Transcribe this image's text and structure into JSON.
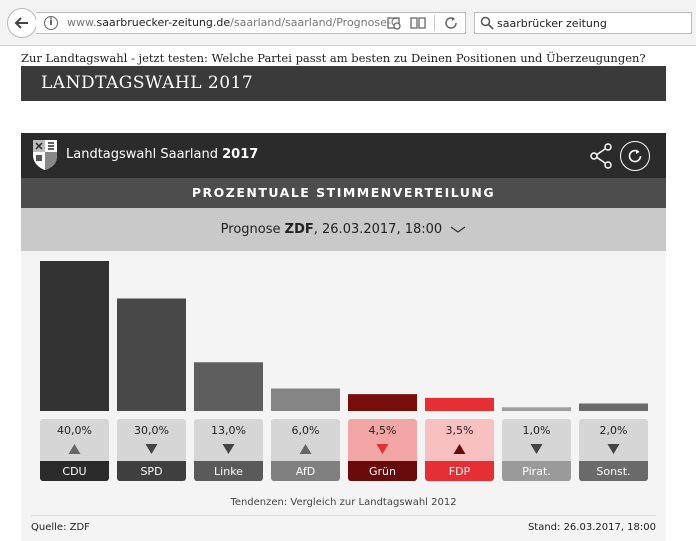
{
  "browser": {
    "url_gray_prefix": "www.",
    "url_domain": "saarbruecker-zeitung.de",
    "url_path": "/saarland/saarland/Prognose-C",
    "search_value": "saarbrücker zeitung"
  },
  "page": {
    "intro": "Zur Landtagswahl - jetzt testen: Welche Partei passt am besten zu Deinen Positionen und Überzeugungen?",
    "header": "LANDTAGSWAHL 2017"
  },
  "widget": {
    "title_prefix": "Landtagswahl Saarland",
    "title_year": "2017",
    "subtitle": "PROZENTUALE STIMMENVERTEILUNG",
    "selector_prefix": "Prognose",
    "selector_source": "ZDF",
    "selector_rest": ", 26.03.2017, 18:00",
    "trend_note": "Tendenzen: Vergleich zur Landtagswahl 2012",
    "source": "Quelle: ZDF",
    "stand": "Stand: 26.03.2017, 18:00"
  },
  "chart_data": {
    "type": "bar",
    "categories": [
      "CDU",
      "SPD",
      "Linke",
      "AfD",
      "Grün",
      "FDP",
      "Pirat.",
      "Sonst."
    ],
    "values": [
      40.0,
      30.0,
      13.0,
      6.0,
      4.5,
      3.5,
      1.0,
      2.0
    ],
    "value_labels": [
      "40,0%",
      "30,0%",
      "13,0%",
      "6,0%",
      "4,5%",
      "3,5%",
      "1,0%",
      "2,0%"
    ],
    "trends": [
      "up",
      "down",
      "down",
      "up",
      "down",
      "up",
      "down",
      "down"
    ],
    "bar_colors": [
      "#333333",
      "#484848",
      "#5e5e5e",
      "#858585",
      "#780d0d",
      "#e52f35",
      "#9e9e9e",
      "#6a6a6a"
    ],
    "card_colors": [
      "#d6d6d6",
      "#d6d6d6",
      "#d6d6d6",
      "#d6d6d6",
      "#f2a5a5",
      "#f8c0c0",
      "#d6d6d6",
      "#d6d6d6"
    ],
    "tag_colors": [
      "#2b2b2b",
      "#3f3f3f",
      "#5a5a5a",
      "#808080",
      "#6b0a0a",
      "#e52f35",
      "#9a9a9a",
      "#6a6a6a"
    ],
    "arrow_colors": [
      "#666666",
      "#444444",
      "#444444",
      "#666666",
      "#e52f35",
      "#6b0a0a",
      "#444444",
      "#444444"
    ],
    "ylim": [
      0,
      40
    ]
  }
}
